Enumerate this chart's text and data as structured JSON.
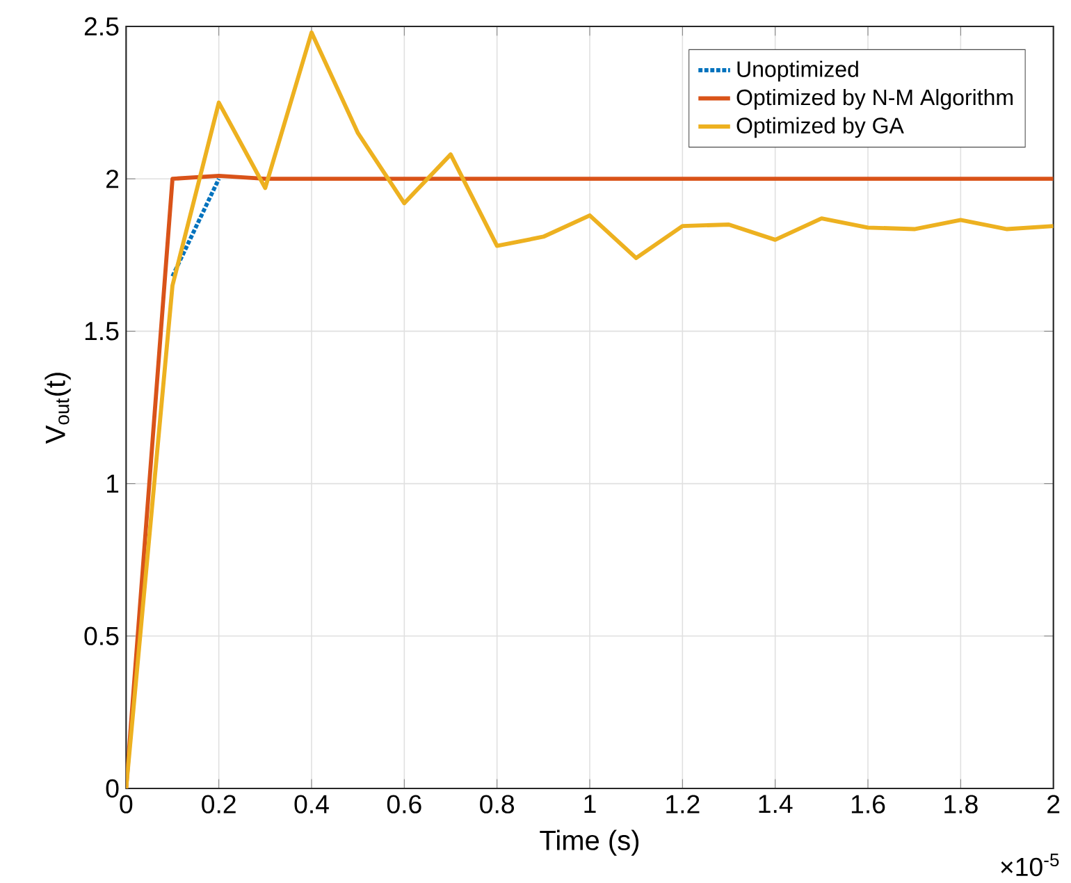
{
  "chart_data": {
    "type": "line",
    "xlabel": "Time (s)",
    "ylabel": "V$_{out}$(t)",
    "x": [
      0,
      0.1,
      0.2,
      0.3,
      0.4,
      0.5,
      0.6,
      0.7,
      0.8,
      0.9,
      1.0,
      1.1,
      1.2,
      1.3,
      1.4,
      1.5,
      1.6,
      1.7,
      1.8,
      1.9,
      2.0
    ],
    "series": [
      {
        "name": "Unoptimized",
        "color": "#0072bd",
        "line_style": "dotted",
        "values": [
          null,
          1.68,
          2.0,
          null,
          null,
          null,
          null,
          null,
          null,
          null,
          null,
          null,
          null,
          null,
          null,
          null,
          null,
          null,
          null,
          null,
          null
        ]
      },
      {
        "name": "Optimized by N-M Algorithm",
        "color": "#d95319",
        "line_style": "solid",
        "values": [
          0,
          2.0,
          2.01,
          2.0,
          2.0,
          2.0,
          2.0,
          2.0,
          2.0,
          2.0,
          2.0,
          2.0,
          2.0,
          2.0,
          2.0,
          2.0,
          2.0,
          2.0,
          2.0,
          2.0,
          2.0
        ]
      },
      {
        "name": "Optimized by GA",
        "color": "#edb120",
        "line_style": "solid",
        "values": [
          0,
          1.65,
          2.25,
          1.97,
          2.48,
          2.15,
          1.92,
          2.08,
          1.78,
          1.81,
          1.88,
          1.74,
          1.845,
          1.85,
          1.8,
          1.87,
          1.84,
          1.835,
          1.865,
          1.835,
          1.845
        ]
      }
    ],
    "xlim": [
      0,
      2
    ],
    "ylim": [
      0,
      2.5
    ],
    "xticks": [
      0,
      0.2,
      0.4,
      0.6,
      0.8,
      1,
      1.2,
      1.4,
      1.6,
      1.8,
      2
    ],
    "yticks": [
      0,
      0.5,
      1,
      1.5,
      2,
      2.5
    ],
    "grid": true,
    "legend": "top right",
    "annotations": [
      "×10$^{-5}$"
    ]
  }
}
